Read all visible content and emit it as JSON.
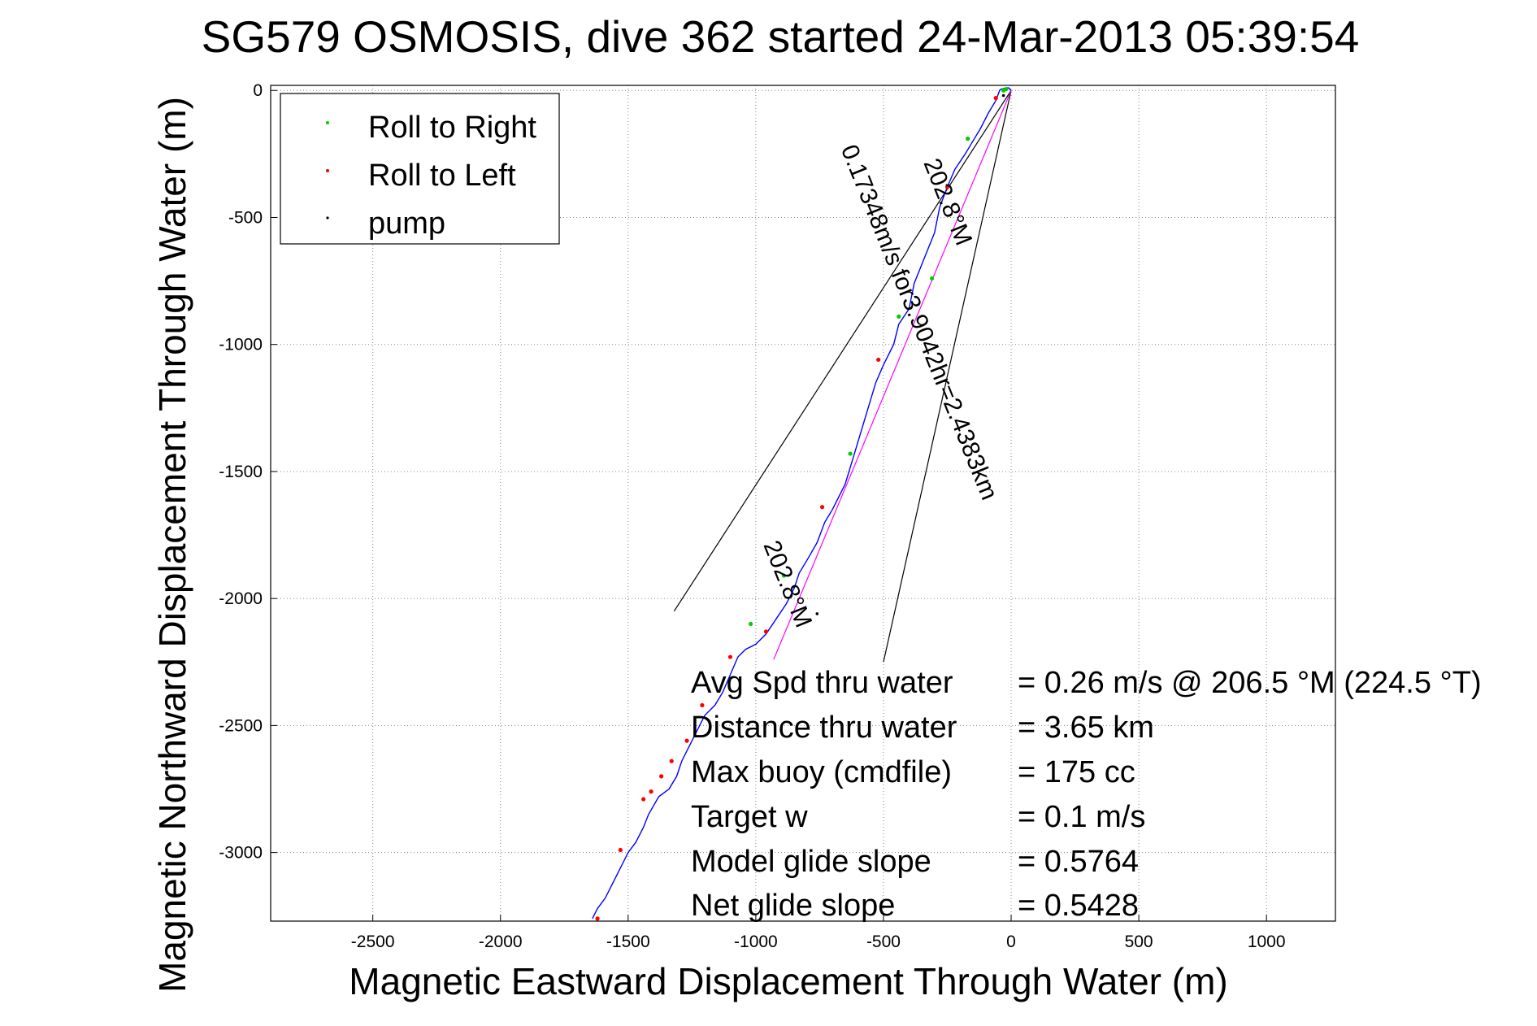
{
  "chart_data": {
    "type": "scatter",
    "title": "SG579 OSMOSIS, dive 362 started 24-Mar-2013 05:39:54",
    "xlabel": "Magnetic Eastward Displacement Through Water (m)",
    "ylabel": "Magnetic Northward Displacement Through Water (m)",
    "xlim": [
      -2900,
      1270
    ],
    "ylim": [
      -3270,
      20
    ],
    "xticks": [
      -2500,
      -2000,
      -1500,
      -1000,
      -500,
      0,
      500,
      1000
    ],
    "yticks": [
      0,
      -500,
      -1000,
      -1500,
      -2000,
      -2500,
      -3000
    ],
    "grid": true,
    "legend_position": "top-left",
    "legend": [
      {
        "label": "Roll to Right",
        "color": "#00cc00"
      },
      {
        "label": "Roll to Left",
        "color": "#ff0000"
      },
      {
        "label": "pump",
        "color": "#000000"
      }
    ],
    "series": [
      {
        "name": "track",
        "color": "#0000ff",
        "x": [
          0,
          -10,
          -20,
          -40,
          -45,
          -60,
          -90,
          -120,
          -150,
          -180,
          -220,
          -250,
          -280,
          -300,
          -340,
          -380,
          -400,
          -440,
          -460,
          -500,
          -530,
          -560,
          -590,
          -620,
          -650,
          -700,
          -730,
          -760,
          -800,
          -830,
          -850,
          -880,
          -920,
          -960,
          -1000,
          -1040,
          -1070,
          -1100,
          -1130,
          -1160,
          -1200,
          -1230,
          -1260,
          -1290,
          -1310,
          -1340,
          -1380,
          -1420,
          -1440,
          -1470,
          -1500,
          -1530,
          -1560,
          -1590,
          -1620,
          -1640
        ],
        "y": [
          0,
          10,
          10,
          5,
          0,
          -40,
          -90,
          -150,
          -200,
          -250,
          -310,
          -380,
          -460,
          -560,
          -660,
          -760,
          -860,
          -920,
          -1000,
          -1080,
          -1150,
          -1250,
          -1350,
          -1450,
          -1550,
          -1650,
          -1700,
          -1780,
          -1850,
          -1900,
          -1960,
          -2020,
          -2080,
          -2140,
          -2180,
          -2200,
          -2230,
          -2300,
          -2370,
          -2420,
          -2460,
          -2520,
          -2580,
          -2640,
          -2700,
          -2750,
          -2780,
          -2850,
          -2900,
          -2960,
          -3000,
          -3060,
          -3120,
          -3180,
          -3220,
          -3260
        ]
      },
      {
        "name": "Roll to Right",
        "color": "#00cc00",
        "x": [
          -30,
          -20,
          -170,
          -310,
          -440,
          -630,
          -890,
          -1020
        ],
        "y": [
          0,
          5,
          -190,
          -740,
          -890,
          -1430,
          -1910,
          -2100
        ]
      },
      {
        "name": "Roll to Left",
        "color": "#ff0000",
        "x": [
          -60,
          -250,
          -520,
          -740,
          -960,
          -1100,
          -1210,
          -1270,
          -1330,
          -1370,
          -1410,
          -1440,
          -1530,
          -1620
        ],
        "y": [
          -30,
          -380,
          -1060,
          -1640,
          -2130,
          -2230,
          -2420,
          -2560,
          -2640,
          -2700,
          -2760,
          -2790,
          -2990,
          -3260
        ]
      },
      {
        "name": "pump",
        "color": "#000000",
        "x": [
          -30,
          -760
        ],
        "y": [
          -20,
          -2060
        ]
      }
    ],
    "current_line": {
      "x": [
        0,
        -930
      ],
      "y": [
        0,
        -2240
      ]
    },
    "cone_lines": [
      {
        "x": [
          0,
          -1320
        ],
        "y": [
          0,
          -2050
        ]
      },
      {
        "x": [
          0,
          -500
        ],
        "y": [
          0,
          -2250
        ]
      }
    ],
    "rotated_labels": [
      "0.17348m/s for3.9042hr=2.4383km",
      "202.8°M",
      "202.8°M"
    ],
    "annotations": [
      {
        "label": "Avg Spd thru water",
        "value": "=  0.26 m/s @ 206.5 °M (224.5 °T)"
      },
      {
        "label": "Distance thru water",
        "value": "=  3.65 km"
      },
      {
        "label": "Max buoy (cmdfile)",
        "value": "= 175 cc"
      },
      {
        "label": "Target w",
        "value": "= 0.1 m/s"
      },
      {
        "label": "Model glide slope",
        "value": "= 0.5764"
      },
      {
        "label": "Net glide slope",
        "value": "= 0.5428"
      }
    ]
  }
}
